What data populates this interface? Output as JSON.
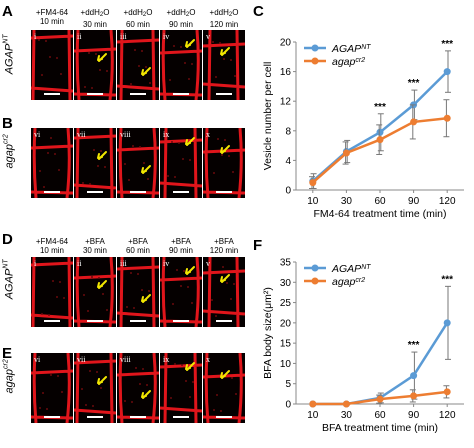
{
  "panels": {
    "A": {
      "letter": "A",
      "heads": [
        {
          "l1": "+FM4-64",
          "l2": "10 min"
        },
        {
          "l1": "+ddH",
          "l2": "30 min"
        },
        {
          "l1": "+ddH",
          "l2": "60 min"
        },
        {
          "l1": "+ddH",
          "l2": "90 min"
        },
        {
          "l1": "+ddH",
          "l2": "120 min"
        }
      ],
      "water_sub": "2",
      "water_tail": "O",
      "numerals": [
        "i",
        "ii",
        "iii",
        "iv",
        "v"
      ],
      "row_label": "AGAP",
      "row_sup": "NT"
    },
    "B": {
      "letter": "B",
      "numerals": [
        "vi",
        "vii",
        "viii",
        "ix",
        "x"
      ],
      "row_label": "agap",
      "row_sup": "cr2"
    },
    "C": {
      "letter": "C"
    },
    "D": {
      "letter": "D",
      "heads": [
        {
          "l1": "+FM4-64",
          "l2": "10 min"
        },
        {
          "l1": "+BFA",
          "l2": "30 min"
        },
        {
          "l1": "+BFA",
          "l2": "60 min"
        },
        {
          "l1": "+BFA",
          "l2": "90 min"
        },
        {
          "l1": "+BFA",
          "l2": "120 min"
        }
      ],
      "numerals": [
        "i",
        "ii",
        "iii",
        "iv",
        "v"
      ],
      "row_label": "AGAP",
      "row_sup": "NT"
    },
    "E": {
      "letter": "E",
      "numerals": [
        "vi",
        "vii",
        "viii",
        "ix",
        "x"
      ],
      "row_label": "agap",
      "row_sup": "cr2"
    },
    "F": {
      "letter": "F"
    }
  },
  "colors": {
    "wt": "#5b9bd5",
    "mut": "#ed7d31",
    "membrane": "#e0151b",
    "arrow": "#f2e600"
  },
  "chart_data": [
    {
      "type": "line",
      "x": [
        10,
        30,
        60,
        90,
        120
      ],
      "xlabel": "FM4-64 treatment time (min)",
      "ylabel": "Vesicle number per cell",
      "ylim": [
        0,
        20
      ],
      "yticks": [
        0,
        4,
        8,
        12,
        16,
        20
      ],
      "series": [
        {
          "name": "AGAP",
          "name_sup": "NT",
          "values": [
            1.2,
            5.2,
            7.8,
            11.5,
            16.0
          ],
          "err": [
            1.0,
            1.5,
            2.5,
            2.0,
            2.8
          ]
        },
        {
          "name": "agap",
          "name_sup": "cr2",
          "values": [
            1.0,
            5.0,
            6.8,
            9.2,
            9.7
          ],
          "err": [
            0.8,
            1.5,
            2.0,
            2.3,
            2.5
          ]
        }
      ],
      "annotations": [
        {
          "x": 60,
          "text": "***"
        },
        {
          "x": 90,
          "text": "***"
        },
        {
          "x": 120,
          "text": "***"
        }
      ],
      "legend": "top-left"
    },
    {
      "type": "line",
      "x": [
        10,
        30,
        60,
        90,
        120
      ],
      "xlabel": "BFA treatment time (min)",
      "ylabel": "BFA body size(μm²)",
      "ylim": [
        0,
        35
      ],
      "yticks": [
        0,
        5,
        10,
        15,
        20,
        25,
        30,
        35
      ],
      "series": [
        {
          "name": "AGAP",
          "name_sup": "NT",
          "values": [
            0,
            0,
            1.5,
            7.0,
            20.0
          ],
          "err": [
            0,
            0,
            1.2,
            5.8,
            9.0
          ]
        },
        {
          "name": "agap",
          "name_sup": "cr2",
          "values": [
            0,
            0,
            1.2,
            2.0,
            3.0
          ],
          "err": [
            0,
            0,
            1.0,
            1.5,
            1.5
          ]
        }
      ],
      "annotations": [
        {
          "x": 90,
          "text": "***"
        },
        {
          "x": 120,
          "text": "***"
        }
      ],
      "legend": "top-left"
    }
  ]
}
